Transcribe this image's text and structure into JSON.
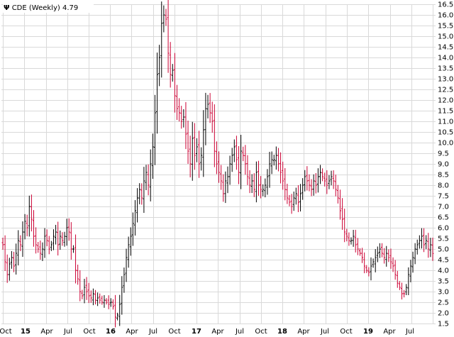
{
  "chart_data": {
    "type": "ohlc",
    "title": "CDE (Weekly)",
    "last_price": "4.79",
    "logo_glyph": "Ψ",
    "colors": {
      "up": "#000000",
      "down": "#cc0033",
      "grid": "#d9d9d9"
    },
    "y_range": [
      1.5,
      16.5
    ],
    "y_ticks": [
      "1.5",
      "2.0",
      "2.5",
      "3.0",
      "3.5",
      "4.0",
      "4.5",
      "5.0",
      "5.5",
      "6.0",
      "6.5",
      "7.0",
      "7.5",
      "8.0",
      "8.5",
      "9.0",
      "9.5",
      "10.0",
      "10.5",
      "11.0",
      "11.5",
      "12.0",
      "12.5",
      "13.0",
      "13.5",
      "14.0",
      "14.5",
      "15.0",
      "15.5",
      "16.0",
      "16.5"
    ],
    "x_ticks": [
      {
        "label": "Oct",
        "year": false
      },
      {
        "label": "15",
        "year": true
      },
      {
        "label": "Apr",
        "year": false
      },
      {
        "label": "Jul",
        "year": false
      },
      {
        "label": "Oct",
        "year": false
      },
      {
        "label": "16",
        "year": true
      },
      {
        "label": "Apr",
        "year": false
      },
      {
        "label": "Jul",
        "year": false
      },
      {
        "label": "Oct",
        "year": false
      },
      {
        "label": "17",
        "year": true
      },
      {
        "label": "Apr",
        "year": false
      },
      {
        "label": "Jul",
        "year": false
      },
      {
        "label": "Oct",
        "year": false
      },
      {
        "label": "18",
        "year": true
      },
      {
        "label": "Apr",
        "year": false
      },
      {
        "label": "Jul",
        "year": false
      },
      {
        "label": "Oct",
        "year": false
      },
      {
        "label": "19",
        "year": true
      },
      {
        "label": "Apr",
        "year": false
      },
      {
        "label": "Jul",
        "year": false
      }
    ],
    "x_start": "2014-10-01",
    "close_series": [
      5.2,
      4.4,
      3.8,
      4.3,
      4.6,
      4.2,
      4.8,
      5.4,
      5.2,
      5.8,
      6.3,
      6.0,
      7.0,
      6.4,
      5.6,
      5.2,
      5.0,
      4.8,
      5.0,
      5.6,
      5.4,
      5.0,
      5.2,
      5.6,
      5.8,
      5.2,
      5.6,
      5.4,
      5.6,
      6.0,
      5.8,
      5.0,
      5.0,
      4.0,
      3.6,
      3.0,
      2.8,
      3.2,
      3.0,
      2.8,
      2.7,
      2.9,
      2.6,
      2.7,
      2.6,
      2.5,
      2.6,
      2.5,
      2.4,
      2.5,
      2.3,
      1.8,
      1.9,
      2.4,
      3.2,
      3.8,
      4.6,
      5.2,
      5.6,
      6.2,
      6.8,
      7.4,
      7.8,
      7.4,
      8.2,
      8.6,
      8.0,
      9.0,
      9.8,
      11.4,
      13.2,
      14.0,
      15.6,
      16.0,
      15.8,
      14.2,
      13.2,
      13.4,
      12.2,
      11.6,
      11.4,
      11.0,
      11.2,
      10.4,
      9.6,
      9.0,
      10.2,
      9.4,
      9.8,
      9.0,
      9.4,
      10.6,
      11.6,
      11.8,
      11.4,
      11.0,
      9.6,
      9.0,
      8.6,
      8.2,
      7.6,
      8.2,
      8.4,
      9.0,
      9.4,
      9.8,
      9.2,
      8.6,
      9.6,
      9.4,
      9.0,
      8.4,
      8.0,
      8.2,
      7.8,
      8.6,
      8.0,
      7.8,
      7.8,
      8.0,
      8.4,
      9.0,
      9.2,
      9.2,
      9.4,
      9.0,
      8.6,
      8.2,
      7.8,
      7.4,
      7.2,
      7.0,
      7.4,
      7.6,
      7.2,
      7.6,
      8.0,
      8.4,
      8.2,
      8.0,
      7.8,
      8.2,
      8.0,
      8.4,
      8.6,
      8.4,
      8.2,
      8.0,
      8.2,
      8.4,
      8.2,
      7.8,
      7.4,
      6.8,
      6.4,
      5.8,
      5.6,
      5.4,
      5.4,
      5.6,
      5.2,
      5.0,
      4.8,
      4.6,
      4.2,
      4.0,
      3.9,
      4.2,
      4.4,
      4.6,
      4.8,
      5.0,
      4.8,
      4.6,
      4.8,
      4.6,
      4.4,
      4.2,
      3.8,
      3.4,
      3.2,
      2.9,
      2.9,
      3.2,
      3.8,
      4.2,
      4.6,
      5.0,
      5.2,
      5.4,
      5.6,
      5.2,
      5.4,
      5.0,
      5.2,
      4.79
    ]
  }
}
